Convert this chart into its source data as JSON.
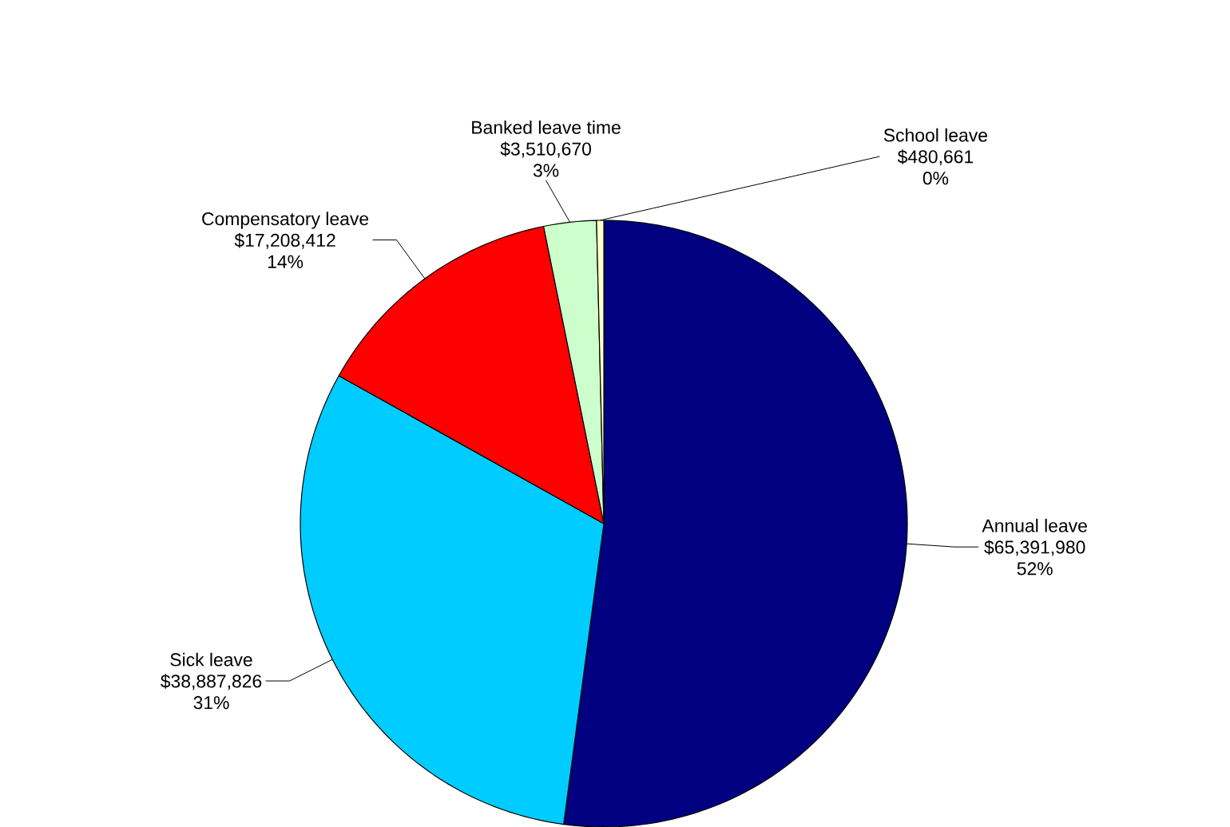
{
  "chart_data": {
    "type": "pie",
    "categories": [
      "Annual leave",
      "Sick leave",
      "Compensatory leave",
      "Banked leave time",
      "School leave"
    ],
    "values": [
      65391980,
      38887826,
      17208412,
      3510670,
      480661
    ],
    "value_labels": [
      "$65,391,980",
      "$38,887,826",
      "$17,208,412",
      "$3,510,670",
      "$480,661"
    ],
    "annotations": [
      "52%",
      "31%",
      "14%",
      "3%",
      "0%"
    ],
    "colors": [
      "#000080",
      "#00ccff",
      "#ff0000",
      "#ccffcc",
      "#ffffcc"
    ]
  }
}
